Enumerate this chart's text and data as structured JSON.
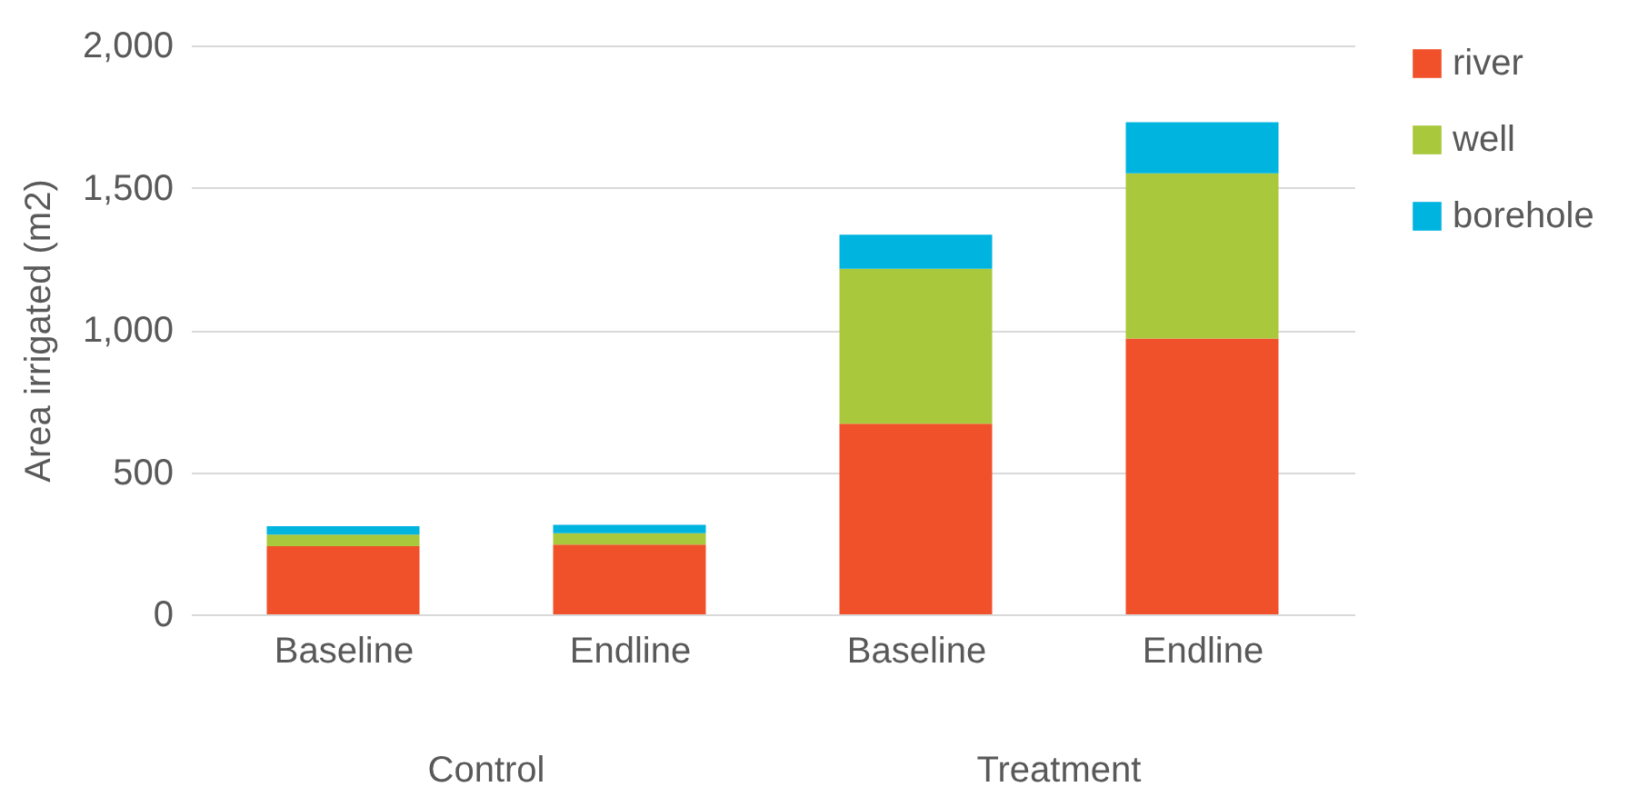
{
  "chart_data": {
    "type": "bar",
    "stacked": true,
    "ylabel": "Area irrigated (m2)",
    "categories": [
      "Baseline",
      "Endline",
      "Baseline",
      "Endline"
    ],
    "annotations": [
      "Control",
      "Treatment"
    ],
    "series": [
      {
        "name": "river",
        "color": "#f0512a",
        "values": [
          240,
          245,
          670,
          970
        ]
      },
      {
        "name": "well",
        "color": "#a9c83b",
        "values": [
          40,
          40,
          545,
          580
        ]
      },
      {
        "name": "borehole",
        "color": "#00b4e0",
        "values": [
          30,
          30,
          120,
          180
        ]
      }
    ],
    "ylim": [
      0,
      2000
    ],
    "yticks": [
      {
        "value": 0,
        "label": "0"
      },
      {
        "value": 500,
        "label": "500"
      },
      {
        "value": 1000,
        "label": "1,000"
      },
      {
        "value": 1500,
        "label": "1,500"
      },
      {
        "value": 2000,
        "label": "2,000"
      }
    ],
    "grid": "y",
    "legend": "right"
  }
}
